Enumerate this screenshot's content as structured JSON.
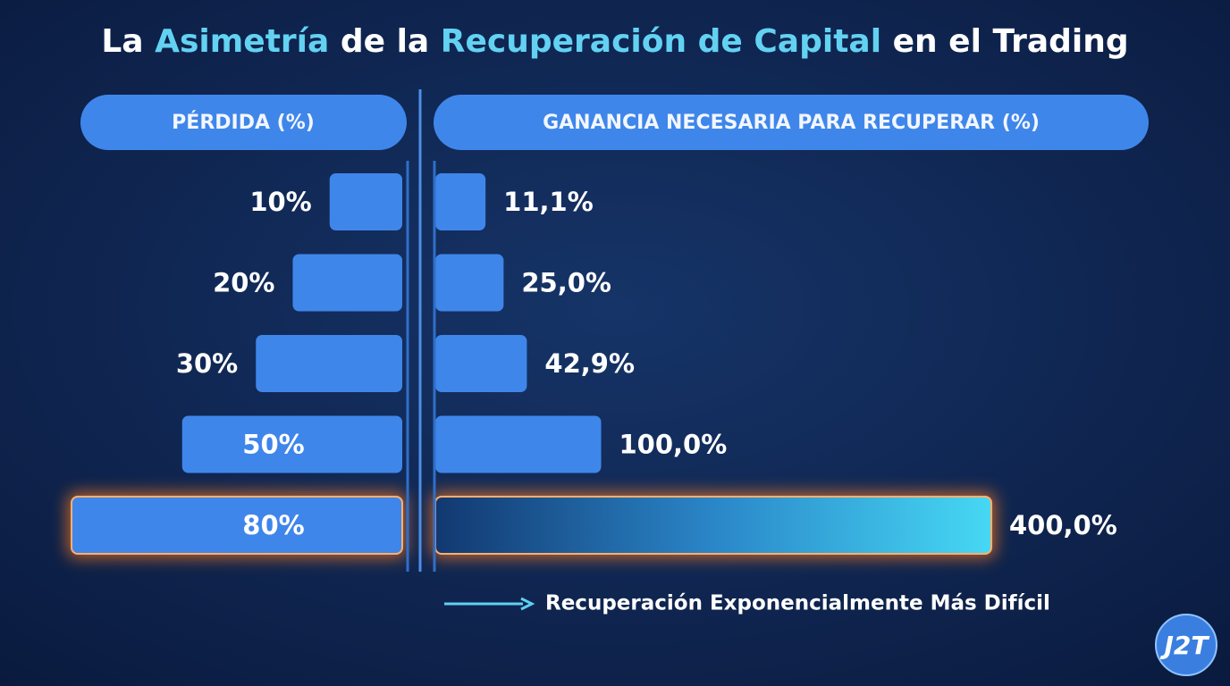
{
  "chart_data": {
    "type": "butterfly",
    "title_parts": [
      "La",
      "Asimetría",
      "de la",
      "Recuperación de Capital",
      "en el Trading"
    ],
    "color": "#3f86ea",
    "left": {
      "header": "PÉRDIDA (%)",
      "values": [
        10,
        20,
        30,
        50,
        80
      ],
      "value_labels": [
        "10%",
        "20%",
        "30%",
        "50%",
        "80%"
      ]
    },
    "right": {
      "header": "GANANCIA NECESARIA PARA RECUPERAR (%)",
      "values": [
        11.1,
        25.0,
        42.9,
        100.0,
        400.0
      ],
      "value_labels": [
        "11,1%",
        "25,0%",
        "42,9%",
        "100,0%",
        "400,0%"
      ]
    },
    "annotation": "Recuperación Exponencialmente Más Difícil",
    "logo": "J2T"
  }
}
